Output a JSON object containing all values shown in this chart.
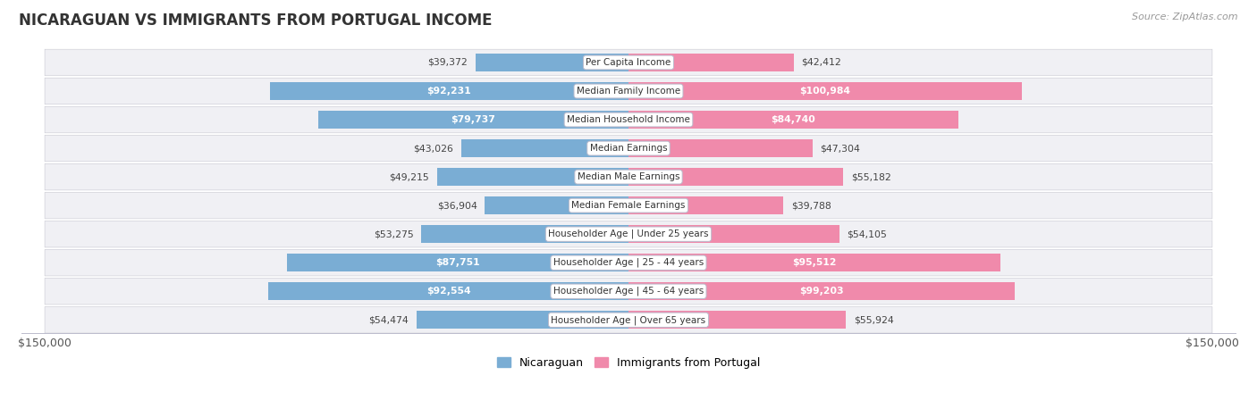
{
  "title": "NICARAGUAN VS IMMIGRANTS FROM PORTUGAL INCOME",
  "source": "Source: ZipAtlas.com",
  "categories": [
    "Per Capita Income",
    "Median Family Income",
    "Median Household Income",
    "Median Earnings",
    "Median Male Earnings",
    "Median Female Earnings",
    "Householder Age | Under 25 years",
    "Householder Age | 25 - 44 years",
    "Householder Age | 45 - 64 years",
    "Householder Age | Over 65 years"
  ],
  "nicaraguan": [
    39372,
    92231,
    79737,
    43026,
    49215,
    36904,
    53275,
    87751,
    92554,
    54474
  ],
  "portugal": [
    42412,
    100984,
    84740,
    47304,
    55182,
    39788,
    54105,
    95512,
    99203,
    55924
  ],
  "max_val": 150000,
  "bar_color_blue": "#7aadd4",
  "bar_color_pink": "#f08aab",
  "bar_color_blue_light": "#aecce8",
  "bar_color_pink_light": "#f5b8cc",
  "legend_blue": "Nicaraguan",
  "legend_pink": "Immigrants from Portugal",
  "inside_label_threshold": 65000
}
